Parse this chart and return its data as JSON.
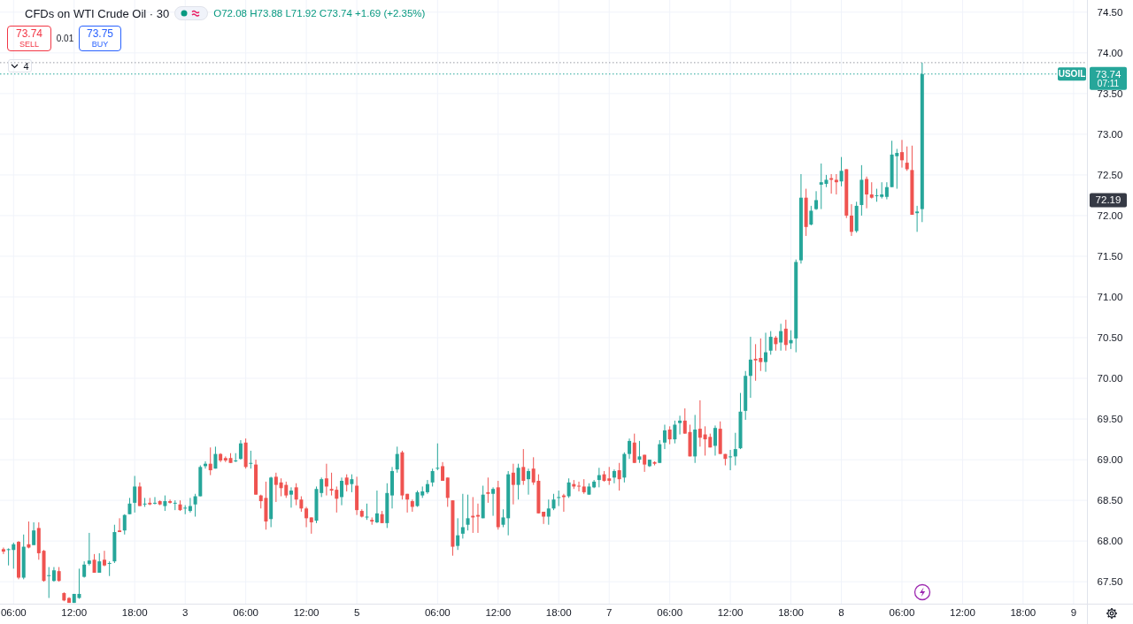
{
  "chart_data": {
    "type": "candlestick",
    "title": "CFDs on WTI Crude Oil · 30",
    "subtitle": "O72.08 H73.88 L71.92 C73.74 +1.69 (+2.35%)",
    "categories": [
      null,
      null,
      "06:00",
      null,
      null,
      null,
      null,
      null,
      null,
      null,
      null,
      null,
      null,
      null,
      "12:00",
      null,
      null,
      null,
      null,
      null,
      null,
      null,
      null,
      null,
      null,
      null,
      "18:00",
      null,
      null,
      null,
      null,
      null,
      null,
      null,
      null,
      null,
      "3",
      null,
      null,
      null,
      null,
      null,
      null,
      null,
      null,
      null,
      null,
      null,
      "06:00",
      null,
      null,
      null,
      null,
      null,
      null,
      null,
      null,
      null,
      null,
      null,
      "12:00",
      null,
      null,
      null,
      null,
      null,
      null,
      null,
      null,
      null,
      "5",
      null,
      null,
      null,
      null,
      null,
      null,
      null,
      null,
      null,
      null,
      null,
      null,
      null,
      null,
      null,
      "06:00",
      null,
      null,
      null,
      null,
      null,
      null,
      null,
      null,
      null,
      null,
      null,
      "12:00",
      null,
      null,
      null,
      null,
      null,
      null,
      null,
      null,
      null,
      null,
      null,
      "18:00",
      null,
      null,
      null,
      null,
      null,
      null,
      null,
      null,
      null,
      "7",
      null,
      null,
      null,
      null,
      null,
      null,
      null,
      null,
      null,
      null,
      null,
      "06:00",
      null,
      null,
      null,
      null,
      null,
      null,
      null,
      null,
      null,
      null,
      null,
      "12:00",
      null,
      null,
      null,
      null,
      null,
      null,
      null,
      null,
      null,
      null,
      null,
      "18:00",
      null,
      null,
      null,
      null,
      null,
      null,
      null,
      null,
      null,
      "8",
      null,
      null,
      null,
      null,
      null,
      null,
      null,
      null,
      null,
      null,
      null,
      "06:00",
      null,
      null,
      null,
      null,
      null,
      null,
      null,
      null,
      null,
      null,
      null,
      "12:00",
      null,
      null,
      null,
      null,
      null,
      null,
      null,
      null,
      null,
      null,
      null,
      "18:00",
      null,
      null,
      null,
      null,
      null,
      null,
      null,
      null,
      null,
      "9",
      null,
      null
    ],
    "ohlc": [
      [
        67.9,
        67.92,
        67.84,
        67.87
      ],
      [
        67.89,
        67.91,
        67.7,
        67.9
      ],
      [
        67.89,
        67.98,
        67.66,
        67.96
      ],
      [
        67.99,
        68.0,
        67.53,
        67.55
      ],
      [
        67.55,
        68.08,
        67.53,
        67.93
      ],
      [
        67.96,
        68.24,
        67.91,
        67.92
      ],
      [
        67.95,
        68.23,
        67.95,
        68.13
      ],
      [
        68.16,
        68.23,
        67.77,
        67.85
      ],
      [
        67.88,
        67.89,
        67.5,
        67.51
      ],
      [
        67.57,
        67.68,
        67.3,
        67.58
      ],
      [
        67.51,
        67.68,
        67.5,
        67.64
      ],
      [
        67.63,
        67.68,
        67.5,
        67.51
      ],
      [
        67.36,
        67.37,
        67.26,
        67.27
      ],
      [
        67.3,
        67.31,
        67.24,
        67.24
      ],
      [
        67.24,
        67.35,
        67.24,
        67.35
      ],
      [
        67.3,
        67.66,
        67.29,
        67.35
      ],
      [
        67.56,
        67.75,
        67.55,
        67.71
      ],
      [
        67.72,
        68.1,
        67.7,
        67.76
      ],
      [
        67.77,
        67.84,
        67.61,
        67.61
      ],
      [
        67.61,
        67.85,
        67.61,
        67.75
      ],
      [
        67.77,
        67.88,
        67.69,
        67.7
      ],
      [
        67.72,
        67.75,
        67.57,
        67.73
      ],
      [
        67.75,
        68.2,
        67.73,
        68.11
      ],
      [
        68.13,
        68.28,
        68.11,
        68.11
      ],
      [
        68.13,
        68.33,
        68.08,
        68.32
      ],
      [
        68.33,
        68.53,
        68.33,
        68.46
      ],
      [
        68.47,
        68.8,
        68.35,
        68.67
      ],
      [
        68.67,
        68.72,
        68.43,
        68.43
      ],
      [
        68.45,
        68.53,
        68.42,
        68.46
      ],
      [
        68.47,
        68.53,
        68.44,
        68.45
      ],
      [
        68.46,
        68.54,
        68.45,
        68.47
      ],
      [
        68.49,
        68.5,
        68.44,
        68.45
      ],
      [
        68.43,
        68.56,
        68.37,
        68.49
      ],
      [
        68.49,
        68.51,
        68.46,
        68.47
      ],
      [
        68.46,
        68.5,
        68.38,
        68.47
      ],
      [
        68.45,
        68.5,
        68.37,
        68.38
      ],
      [
        68.4,
        68.44,
        68.33,
        68.41
      ],
      [
        68.37,
        68.53,
        68.35,
        68.43
      ],
      [
        68.45,
        68.58,
        68.3,
        68.55
      ],
      [
        68.55,
        68.93,
        68.55,
        68.91
      ],
      [
        68.92,
        68.98,
        68.89,
        68.95
      ],
      [
        68.95,
        69.15,
        68.81,
        68.87
      ],
      [
        68.89,
        69.16,
        68.89,
        69.07
      ],
      [
        69.07,
        69.08,
        68.97,
        68.99
      ],
      [
        69.02,
        69.04,
        68.97,
        68.99
      ],
      [
        69.02,
        69.08,
        68.96,
        68.96
      ],
      [
        68.98,
        69.08,
        68.97,
        68.99
      ],
      [
        69.01,
        69.24,
        69.0,
        69.2
      ],
      [
        69.21,
        69.26,
        68.89,
        68.91
      ],
      [
        68.95,
        69.11,
        68.89,
        68.96
      ],
      [
        68.94,
        69.0,
        68.57,
        68.57
      ],
      [
        68.56,
        68.57,
        68.4,
        68.49
      ],
      [
        68.53,
        68.73,
        68.14,
        68.24
      ],
      [
        68.27,
        68.79,
        68.17,
        68.78
      ],
      [
        68.79,
        68.84,
        68.48,
        68.69
      ],
      [
        68.72,
        68.77,
        68.55,
        68.65
      ],
      [
        68.69,
        68.73,
        68.53,
        68.56
      ],
      [
        68.57,
        68.66,
        68.41,
        68.62
      ],
      [
        68.66,
        68.71,
        68.44,
        68.51
      ],
      [
        68.51,
        68.55,
        68.36,
        68.4
      ],
      [
        68.4,
        68.42,
        68.17,
        68.28
      ],
      [
        68.29,
        68.29,
        68.09,
        68.23
      ],
      [
        68.25,
        68.67,
        68.22,
        68.64
      ],
      [
        68.59,
        68.78,
        68.54,
        68.76
      ],
      [
        68.77,
        68.95,
        68.56,
        68.67
      ],
      [
        68.64,
        68.84,
        68.56,
        68.62
      ],
      [
        68.63,
        68.67,
        68.35,
        68.52
      ],
      [
        68.54,
        68.78,
        68.44,
        68.74
      ],
      [
        68.78,
        68.82,
        68.61,
        68.69
      ],
      [
        68.7,
        68.82,
        68.6,
        68.76
      ],
      [
        68.68,
        68.79,
        68.32,
        68.38
      ],
      [
        68.37,
        68.39,
        68.29,
        68.3
      ],
      [
        68.29,
        68.46,
        68.26,
        68.3
      ],
      [
        68.26,
        68.29,
        68.2,
        68.24
      ],
      [
        68.23,
        68.62,
        68.22,
        68.34
      ],
      [
        68.33,
        68.37,
        68.22,
        68.22
      ],
      [
        68.22,
        68.71,
        68.16,
        68.59
      ],
      [
        68.56,
        68.91,
        68.4,
        68.86
      ],
      [
        68.88,
        69.16,
        68.84,
        69.07
      ],
      [
        69.09,
        69.11,
        68.51,
        68.56
      ],
      [
        68.58,
        68.58,
        68.35,
        68.51
      ],
      [
        68.49,
        68.51,
        68.36,
        68.42
      ],
      [
        68.43,
        68.62,
        68.42,
        68.6
      ],
      [
        68.56,
        68.67,
        68.53,
        68.61
      ],
      [
        68.6,
        68.75,
        68.58,
        68.7
      ],
      [
        68.72,
        68.89,
        68.67,
        68.86
      ],
      [
        68.89,
        69.2,
        68.87,
        68.9
      ],
      [
        68.92,
        68.97,
        68.74,
        68.74
      ],
      [
        68.78,
        68.78,
        68.42,
        68.53
      ],
      [
        68.5,
        68.5,
        67.82,
        67.93
      ],
      [
        67.94,
        68.28,
        67.89,
        68.07
      ],
      [
        68.09,
        68.58,
        68.03,
        68.17
      ],
      [
        68.2,
        68.57,
        68.13,
        68.28
      ],
      [
        68.31,
        68.54,
        68.1,
        68.29
      ],
      [
        68.32,
        68.46,
        68.1,
        68.3
      ],
      [
        68.28,
        68.68,
        68.28,
        68.57
      ],
      [
        68.6,
        68.78,
        68.47,
        68.58
      ],
      [
        68.58,
        68.66,
        68.31,
        68.64
      ],
      [
        68.66,
        68.74,
        68.14,
        68.17
      ],
      [
        68.2,
        68.39,
        68.17,
        68.29
      ],
      [
        68.28,
        68.86,
        68.07,
        68.82
      ],
      [
        68.84,
        68.95,
        68.45,
        68.69
      ],
      [
        68.69,
        68.95,
        68.51,
        68.9
      ],
      [
        68.91,
        69.13,
        68.69,
        68.74
      ],
      [
        68.76,
        68.89,
        68.57,
        68.86
      ],
      [
        68.89,
        69.03,
        68.69,
        68.72
      ],
      [
        68.74,
        68.82,
        68.34,
        68.34
      ],
      [
        68.36,
        68.36,
        68.21,
        68.3
      ],
      [
        68.3,
        68.51,
        68.2,
        68.4
      ],
      [
        68.4,
        68.58,
        68.38,
        68.51
      ],
      [
        68.53,
        68.62,
        68.43,
        68.54
      ],
      [
        68.56,
        68.58,
        68.36,
        68.54
      ],
      [
        68.55,
        68.77,
        68.53,
        68.72
      ],
      [
        68.7,
        68.75,
        68.64,
        68.67
      ],
      [
        68.68,
        68.73,
        68.61,
        68.67
      ],
      [
        68.67,
        68.76,
        68.58,
        68.6
      ],
      [
        68.57,
        68.71,
        68.57,
        68.67
      ],
      [
        68.66,
        68.75,
        68.65,
        68.73
      ],
      [
        68.75,
        68.9,
        68.66,
        68.81
      ],
      [
        68.82,
        68.86,
        68.73,
        68.74
      ],
      [
        68.77,
        68.91,
        68.69,
        68.74
      ],
      [
        68.78,
        68.88,
        68.71,
        68.86
      ],
      [
        68.87,
        68.96,
        68.62,
        68.76
      ],
      [
        68.78,
        69.09,
        68.72,
        69.07
      ],
      [
        69.07,
        69.26,
        69.01,
        69.23
      ],
      [
        69.21,
        69.32,
        68.96,
        68.96
      ],
      [
        69.0,
        69.23,
        68.96,
        69.04
      ],
      [
        69.06,
        69.06,
        68.85,
        68.94
      ],
      [
        68.92,
        69.0,
        68.91,
        69.0
      ],
      [
        68.97,
        68.98,
        68.93,
        68.95
      ],
      [
        68.96,
        69.24,
        68.96,
        69.19
      ],
      [
        69.21,
        69.43,
        69.13,
        69.36
      ],
      [
        69.37,
        69.41,
        69.19,
        69.25
      ],
      [
        69.25,
        69.48,
        69.2,
        69.43
      ],
      [
        69.45,
        69.54,
        69.31,
        69.48
      ],
      [
        69.48,
        69.63,
        69.32,
        69.32
      ],
      [
        69.34,
        69.43,
        69.04,
        69.04
      ],
      [
        69.04,
        69.55,
        68.96,
        69.37
      ],
      [
        69.38,
        69.73,
        69.16,
        69.27
      ],
      [
        69.31,
        69.41,
        69.05,
        69.25
      ],
      [
        69.28,
        69.32,
        69.15,
        69.15
      ],
      [
        69.17,
        69.42,
        69.05,
        69.39
      ],
      [
        69.38,
        69.47,
        69.07,
        69.07
      ],
      [
        69.07,
        69.07,
        68.93,
        69.01
      ],
      [
        69.03,
        69.12,
        68.87,
        69.04
      ],
      [
        69.04,
        69.33,
        68.93,
        69.13
      ],
      [
        69.14,
        69.82,
        69.13,
        69.59
      ],
      [
        69.6,
        70.09,
        69.49,
        70.03
      ],
      [
        70.03,
        70.51,
        69.76,
        70.23
      ],
      [
        70.24,
        70.42,
        69.97,
        70.22
      ],
      [
        70.25,
        70.49,
        70.09,
        70.2
      ],
      [
        70.2,
        70.56,
        70.08,
        70.32
      ],
      [
        70.34,
        70.58,
        70.29,
        70.51
      ],
      [
        70.5,
        70.52,
        70.34,
        70.42
      ],
      [
        70.44,
        70.67,
        70.34,
        70.58
      ],
      [
        70.61,
        70.72,
        70.34,
        70.41
      ],
      [
        70.43,
        70.59,
        70.36,
        70.47
      ],
      [
        70.49,
        71.46,
        70.32,
        71.43
      ],
      [
        71.45,
        72.51,
        71.41,
        72.22
      ],
      [
        72.22,
        72.33,
        71.75,
        71.86
      ],
      [
        71.89,
        72.12,
        71.88,
        72.06
      ],
      [
        72.08,
        72.3,
        72.07,
        72.19
      ],
      [
        72.38,
        72.64,
        72.08,
        72.41
      ],
      [
        72.39,
        72.5,
        72.35,
        72.44
      ],
      [
        72.46,
        72.51,
        72.27,
        72.44
      ],
      [
        72.44,
        72.51,
        72.26,
        72.41
      ],
      [
        72.42,
        72.72,
        72.36,
        72.55
      ],
      [
        72.57,
        72.57,
        71.97,
        72.0
      ],
      [
        72.0,
        72.14,
        71.75,
        71.8
      ],
      [
        71.81,
        72.17,
        71.79,
        72.12
      ],
      [
        72.13,
        72.62,
        72.0,
        72.44
      ],
      [
        72.45,
        72.48,
        72.09,
        72.26
      ],
      [
        72.26,
        72.41,
        72.21,
        72.22
      ],
      [
        72.24,
        72.33,
        72.17,
        72.25
      ],
      [
        72.23,
        72.41,
        72.21,
        72.26
      ],
      [
        72.23,
        72.41,
        72.2,
        72.35
      ],
      [
        72.35,
        72.92,
        72.35,
        72.75
      ],
      [
        72.73,
        72.82,
        72.33,
        72.77
      ],
      [
        72.78,
        72.93,
        72.59,
        72.68
      ],
      [
        72.65,
        72.85,
        72.55,
        72.57
      ],
      [
        72.56,
        72.86,
        72.01,
        72.01
      ],
      [
        72.03,
        72.12,
        71.8,
        72.05
      ],
      [
        72.08,
        73.88,
        71.92,
        73.74
      ],
      null,
      null,
      null,
      null,
      null,
      null,
      null,
      null,
      null,
      null,
      null,
      null,
      null,
      null,
      null,
      null,
      null,
      null,
      null,
      null,
      null,
      null,
      null,
      null,
      null,
      null,
      null,
      null,
      null,
      null,
      null,
      null
    ],
    "colors": [
      "#ef5350",
      "#26a69a",
      "#26a69a",
      "#ef5350",
      "#26a69a",
      "#ef5350",
      "#26a69a",
      "#ef5350",
      "#ef5350",
      "#26a69a",
      "#26a69a",
      "#ef5350",
      "#ef5350",
      "#ef5350",
      "#26a69a",
      "#26a69a",
      "#26a69a",
      "#26a69a",
      "#ef5350",
      "#26a69a",
      "#ef5350",
      "#26a69a",
      "#26a69a",
      "#ef5350",
      "#26a69a",
      "#26a69a",
      "#26a69a",
      "#ef5350",
      "#26a69a",
      "#ef5350",
      "#26a69a",
      "#ef5350",
      "#26a69a",
      "#ef5350",
      "#26a69a",
      "#ef5350",
      "#26a69a",
      "#26a69a",
      "#26a69a",
      "#26a69a",
      "#26a69a",
      "#ef5350",
      "#26a69a",
      "#ef5350",
      "#ef5350",
      "#ef5350",
      "#26a69a",
      "#26a69a",
      "#ef5350",
      "#26a69a",
      "#ef5350",
      "#ef5350",
      "#ef5350",
      "#26a69a",
      "#ef5350",
      "#ef5350",
      "#ef5350",
      "#26a69a",
      "#ef5350",
      "#ef5350",
      "#ef5350",
      "#ef5350",
      "#26a69a",
      "#26a69a",
      "#ef5350",
      "#ef5350",
      "#ef5350",
      "#26a69a",
      "#ef5350",
      "#26a69a",
      "#ef5350",
      "#ef5350",
      "#26a69a",
      "#ef5350",
      "#26a69a",
      "#ef5350",
      "#26a69a",
      "#26a69a",
      "#26a69a",
      "#ef5350",
      "#ef5350",
      "#ef5350",
      "#26a69a",
      "#26a69a",
      "#26a69a",
      "#26a69a",
      "#26a69a",
      "#ef5350",
      "#ef5350",
      "#ef5350",
      "#26a69a",
      "#26a69a",
      "#26a69a",
      "#ef5350",
      "#ef5350",
      "#26a69a",
      "#ef5350",
      "#26a69a",
      "#ef5350",
      "#26a69a",
      "#26a69a",
      "#ef5350",
      "#26a69a",
      "#ef5350",
      "#26a69a",
      "#ef5350",
      "#ef5350",
      "#ef5350",
      "#26a69a",
      "#26a69a",
      "#26a69a",
      "#ef5350",
      "#26a69a",
      "#ef5350",
      "#ef5350",
      "#ef5350",
      "#26a69a",
      "#26a69a",
      "#26a69a",
      "#ef5350",
      "#ef5350",
      "#26a69a",
      "#ef5350",
      "#26a69a",
      "#26a69a",
      "#ef5350",
      "#26a69a",
      "#ef5350",
      "#26a69a",
      "#ef5350",
      "#26a69a",
      "#26a69a",
      "#ef5350",
      "#26a69a",
      "#26a69a",
      "#ef5350",
      "#ef5350",
      "#26a69a",
      "#ef5350",
      "#ef5350",
      "#ef5350",
      "#26a69a",
      "#ef5350",
      "#ef5350",
      "#26a69a",
      "#26a69a",
      "#26a69a",
      "#26a69a",
      "#26a69a",
      "#ef5350",
      "#ef5350",
      "#26a69a",
      "#26a69a",
      "#ef5350",
      "#26a69a",
      "#ef5350",
      "#26a69a",
      "#26a69a",
      "#26a69a",
      "#ef5350",
      "#26a69a",
      "#26a69a",
      "#26a69a",
      "#26a69a",
      "#ef5350",
      "#ef5350",
      "#26a69a",
      "#ef5350",
      "#ef5350",
      "#26a69a",
      "#26a69a",
      "#ef5350",
      "#ef5350",
      "#26a69a",
      "#26a69a",
      "#26a69a",
      "#26a69a",
      "#26a69a",
      "#ef5350",
      "#ef5350",
      "#ef5350",
      "#26a69a",
      "#26a69a",
      null,
      null,
      null,
      null,
      null,
      null,
      null,
      null,
      null,
      null,
      null,
      null,
      null,
      null,
      null,
      null,
      null,
      null,
      null,
      null,
      null,
      null,
      null,
      null,
      null,
      null,
      null,
      null,
      null,
      null,
      null,
      null
    ],
    "ylim": [
      67.23,
      74.65
    ],
    "yticks": [
      {
        "value": 67.5,
        "label": "67.50"
      },
      {
        "value": 68,
        "label": "68.00"
      },
      {
        "value": 68.5,
        "label": "68.50"
      },
      {
        "value": 69,
        "label": "69.00"
      },
      {
        "value": 69.5,
        "label": "69.50"
      },
      {
        "value": 70,
        "label": "70.00"
      },
      {
        "value": 70.5,
        "label": "70.50"
      },
      {
        "value": 71,
        "label": "71.00"
      },
      {
        "value": 71.5,
        "label": "71.50"
      },
      {
        "value": 72,
        "label": "72.00"
      },
      {
        "value": 72.5,
        "label": "72.50"
      },
      {
        "value": 73,
        "label": "73.00"
      },
      {
        "value": 73.5,
        "label": "73.50"
      },
      {
        "value": 74,
        "label": "74.00"
      },
      {
        "value": 74.5,
        "label": "74.50"
      }
    ],
    "grid": true,
    "ref_lines": [
      {
        "axis": "y",
        "value": 73.88,
        "color": "#9598a1",
        "line_style": "dotted"
      },
      {
        "axis": "y",
        "value": 73.74,
        "label": "USOIL",
        "color": "#26a69a",
        "line_style": "dotted"
      }
    ],
    "annotations": [
      "73.74",
      "SELL",
      "0.01",
      "73.75",
      "BUY",
      "4",
      "07:11",
      {
        "text": "72.19",
        "y": 72.19
      }
    ]
  }
}
